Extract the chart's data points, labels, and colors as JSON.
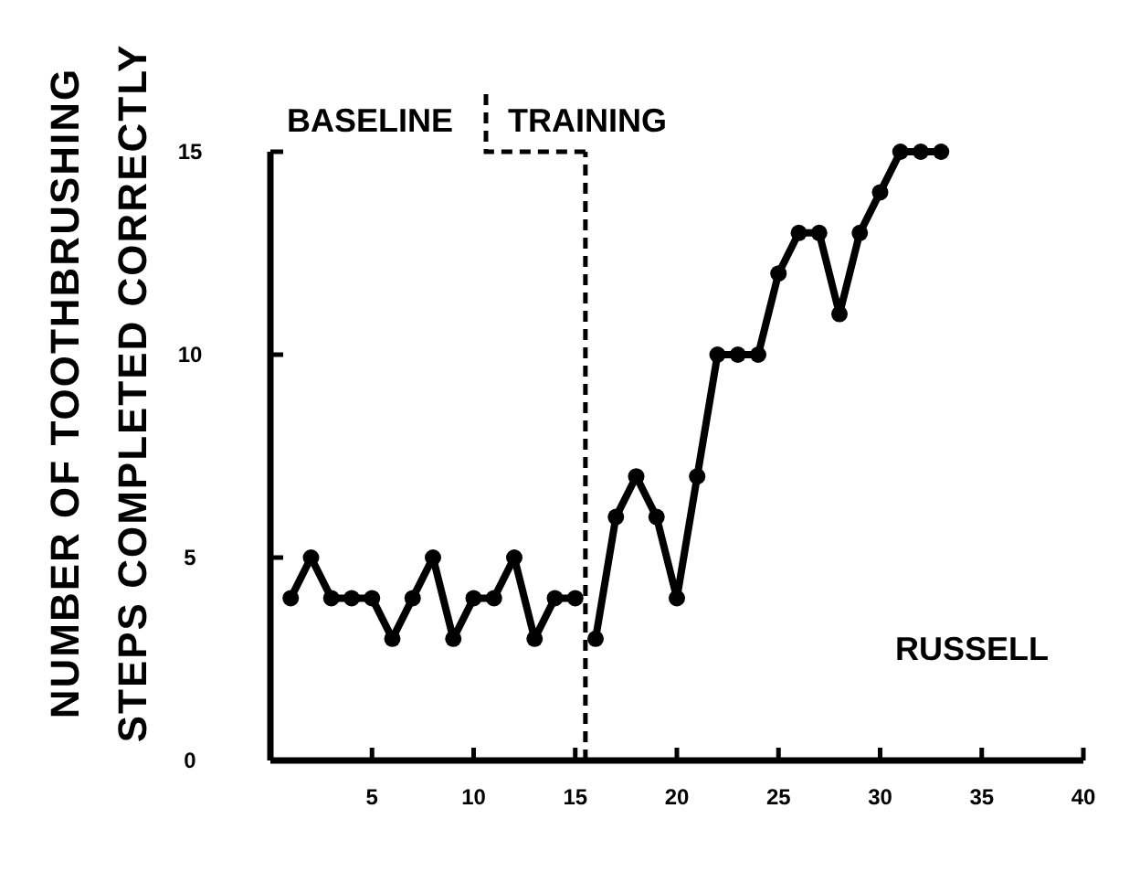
{
  "chart_data": {
    "type": "line",
    "ylabel": "NUMBER OF TOOTHBRUSHING\nSTEPS COMPLETED CORRECTLY",
    "series": [
      {
        "color": "#000000",
        "x": [
          1,
          2,
          3,
          4,
          5,
          6,
          7,
          8,
          9,
          10,
          11,
          12,
          13,
          14,
          15
        ],
        "values": [
          4,
          5,
          4,
          4,
          4,
          3,
          4,
          5,
          3,
          4,
          4,
          5,
          3,
          4,
          4
        ]
      },
      {
        "color": "#000000",
        "x": [
          16,
          17,
          18,
          19,
          20,
          21,
          22,
          23,
          24,
          25,
          26,
          27,
          28,
          29,
          30,
          31,
          32,
          33
        ],
        "values": [
          3,
          6,
          7,
          6,
          4,
          7,
          10,
          10,
          10,
          12,
          13,
          13,
          11,
          13,
          14,
          15,
          15,
          15
        ]
      }
    ],
    "xlim": [
      0,
      40
    ],
    "xticks": [
      5,
      10,
      15,
      20,
      25,
      30,
      35,
      40
    ],
    "ylim": [
      0,
      15
    ],
    "yticks": [
      0,
      5,
      10,
      15
    ],
    "ref_lines": [
      {
        "axis": "x",
        "value": 15.5,
        "color": "#000000",
        "line_style": "dashed"
      }
    ],
    "annotations": [
      "BASELINE",
      "TRAINING",
      "RUSSELL"
    ],
    "marker": "circle",
    "line_style": "solid"
  }
}
